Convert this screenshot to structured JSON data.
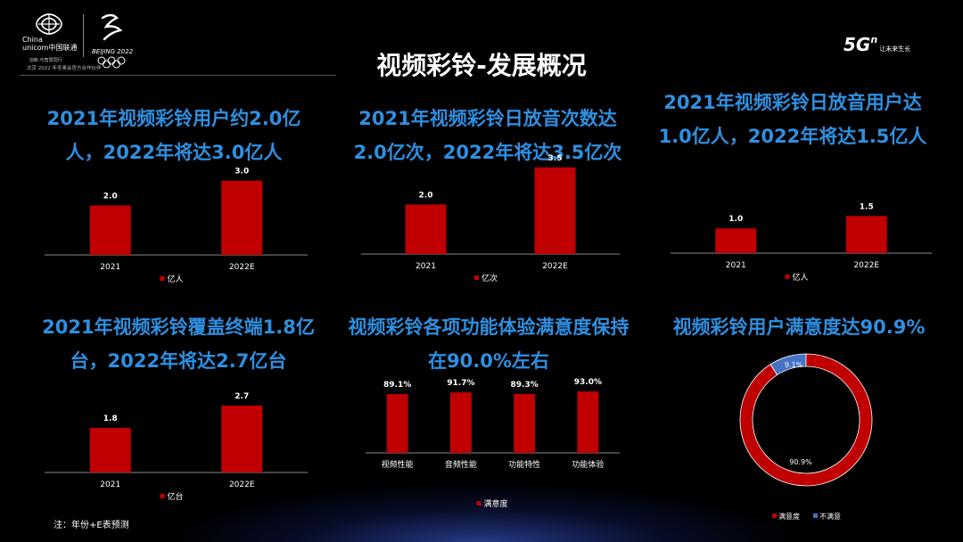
{
  "page": {
    "title": "视频彩铃-发展概况",
    "note": "注：年份+E表预测",
    "logo_left": {
      "cu_line1": "China",
      "cu_line2": "unicom中国联通",
      "cu_slogan": "创新·与智慧同行",
      "bj_text": "BEIJING 2022",
      "partner": "北京 2022 年冬奥会官方合作伙伴"
    },
    "logo_right": {
      "main": "5G",
      "sup": "n",
      "tag": "让未来生长"
    }
  },
  "colors": {
    "bar": "#c00000",
    "accent_blue": "#2f8fe0",
    "light_blue": "#4472c4",
    "axis": "#888888"
  },
  "chart_data": [
    {
      "type": "bar",
      "heading": "2021年视频彩铃用户约2.0亿人，2022年将达3.0亿人",
      "categories": [
        "2021",
        "2022E"
      ],
      "series": [
        {
          "name": "亿人",
          "values": [
            2.0,
            3.0
          ],
          "labels": [
            "2.0",
            "3.0"
          ]
        }
      ],
      "ylim": [
        0,
        3.6
      ]
    },
    {
      "type": "bar",
      "heading": "2021年视频彩铃日放音次数达2.0亿次，2022年将达3.5亿次",
      "categories": [
        "2021",
        "2022E"
      ],
      "series": [
        {
          "name": "亿次",
          "values": [
            2.0,
            3.5
          ],
          "labels": [
            "2.0",
            "3.5"
          ]
        }
      ],
      "ylim": [
        0,
        3.6
      ]
    },
    {
      "type": "bar",
      "heading": "2021年视频彩铃日放音用户达1.0亿人，2022年将达1.5亿人",
      "categories": [
        "2021",
        "2022E"
      ],
      "series": [
        {
          "name": "亿人",
          "values": [
            1.0,
            1.5
          ],
          "labels": [
            "1.0",
            "1.5"
          ]
        }
      ],
      "ylim": [
        0,
        3.6
      ]
    },
    {
      "type": "bar",
      "heading": "2021年视频彩铃覆盖终端1.8亿台，2022年将达2.7亿台",
      "categories": [
        "2021",
        "2022E"
      ],
      "series": [
        {
          "name": "亿台",
          "values": [
            1.8,
            2.7
          ],
          "labels": [
            "1.8",
            "2.7"
          ]
        }
      ],
      "ylim": [
        0,
        3.6
      ]
    },
    {
      "type": "bar",
      "heading": "视频彩铃各项功能体验满意度保持在90.0%左右",
      "categories": [
        "视频性能",
        "音频性能",
        "功能特性",
        "功能体验"
      ],
      "series": [
        {
          "name": "满意度",
          "values": [
            89.1,
            91.7,
            89.3,
            93.0
          ],
          "labels": [
            "89.1%",
            "91.7%",
            "89.3%",
            "93.0%"
          ]
        }
      ],
      "ylim": [
        0,
        100
      ]
    },
    {
      "type": "pie",
      "heading": "视频彩铃用户满意度达90.9%",
      "donut": true,
      "slices": [
        {
          "name": "满意度",
          "value": 90.9,
          "label": "90.9%",
          "color": "#c00000"
        },
        {
          "name": "不满意",
          "value": 9.1,
          "label": "9.1%",
          "color": "#4472c4"
        }
      ],
      "legend": "bottom"
    }
  ]
}
